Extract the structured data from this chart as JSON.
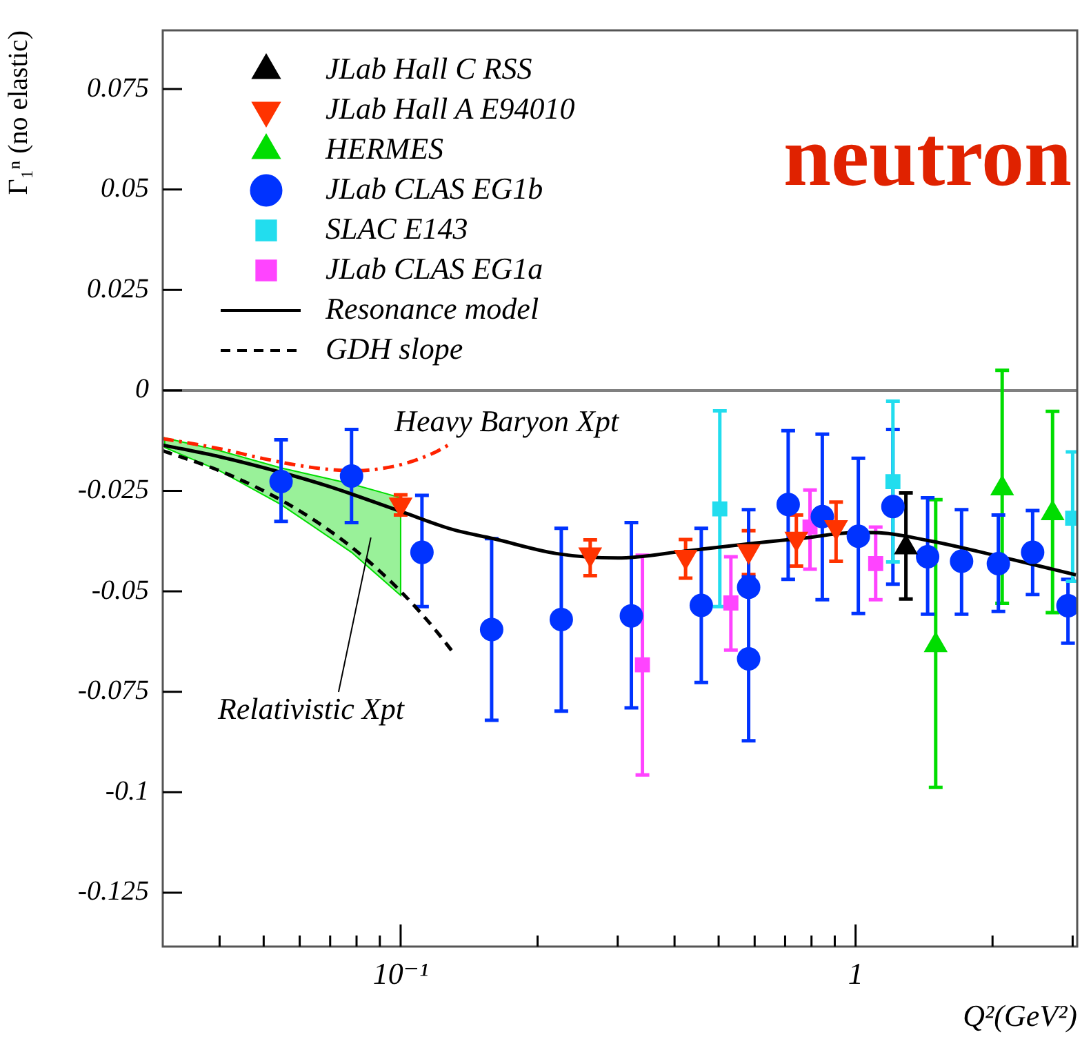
{
  "chart_data": {
    "type": "scatter",
    "ylabel": "Γ₁ⁿ (no elastic)",
    "xlabel": "Q²(GeV²)",
    "log": "x",
    "xlim": [
      0.03,
      3.07
    ],
    "ylim": [
      -0.1384,
      0.0896
    ],
    "xticks": [
      {
        "value": 0.04,
        "label": null
      },
      {
        "value": 0.05,
        "label": null
      },
      {
        "value": 0.06,
        "label": null
      },
      {
        "value": 0.07,
        "label": null
      },
      {
        "value": 0.08,
        "label": null
      },
      {
        "value": 0.09,
        "label": null
      },
      {
        "value": 0.1,
        "label": "10⁻¹"
      },
      {
        "value": 0.2,
        "label": null
      },
      {
        "value": 0.3,
        "label": null
      },
      {
        "value": 0.4,
        "label": null
      },
      {
        "value": 0.5,
        "label": null
      },
      {
        "value": 0.6,
        "label": null
      },
      {
        "value": 0.7,
        "label": null
      },
      {
        "value": 0.8,
        "label": null
      },
      {
        "value": 0.9,
        "label": null
      },
      1,
      {
        "value": 2,
        "label": null
      },
      {
        "value": 3,
        "label": null
      }
    ],
    "yticks": [
      -0.125,
      -0.1,
      -0.075,
      -0.05,
      -0.025,
      0,
      0.025,
      0.05,
      0.075
    ],
    "grid": false,
    "legend": "top left",
    "ref_lines": [
      {
        "axis": "y",
        "value": 0,
        "color": "#808080"
      }
    ],
    "annotations": [
      "neutron",
      "Heavy Baryon Xpt",
      "Relativistic Xpt"
    ],
    "series": [
      {
        "name": "JLab Hall C RSS",
        "marker": "triangle",
        "color": "#000000",
        "x": [
          1.29
        ],
        "values": [
          -0.0391
        ],
        "errors": [
          [
            -0.0519,
            -0.0255
          ]
        ]
      },
      {
        "name": "JLab Hall A E94010",
        "marker": "triangle-down",
        "color": "#ff3300",
        "x": [
          0.1,
          0.261,
          0.423,
          0.582,
          0.741,
          0.906
        ],
        "values": [
          -0.0284,
          -0.0408,
          -0.0414,
          -0.04,
          -0.0369,
          -0.034
        ],
        "errors": [
          [
            -0.031,
            -0.026
          ],
          [
            -0.0461,
            -0.0372
          ],
          [
            -0.0467,
            -0.0371
          ],
          [
            -0.0458,
            -0.0349
          ],
          [
            -0.0437,
            -0.031
          ],
          [
            -0.0425,
            -0.0278
          ]
        ]
      },
      {
        "name": "HERMES",
        "marker": "triangle",
        "color": "#00dd00",
        "x": [
          1.5,
          2.1,
          2.71
        ],
        "values": [
          -0.0634,
          -0.0244,
          -0.0306
        ],
        "errors": [
          [
            -0.0988,
            -0.0272
          ],
          [
            -0.053,
            0.005
          ],
          [
            -0.0553,
            -0.0052
          ]
        ]
      },
      {
        "name": "JLab CLAS EG1b",
        "marker": "circle",
        "color": "#0033ff",
        "x": [
          0.0546,
          0.078,
          0.1114,
          0.1585,
          0.2255,
          0.3215,
          0.458,
          0.582,
          0.582,
          0.711,
          0.845,
          1.014,
          1.208,
          1.44,
          1.71,
          2.06,
          2.45,
          2.93
        ],
        "values": [
          -0.0227,
          -0.0213,
          -0.0403,
          -0.0595,
          -0.057,
          -0.0561,
          -0.0535,
          -0.049,
          -0.0668,
          -0.0284,
          -0.0314,
          -0.0363,
          -0.0289,
          -0.0414,
          -0.0425,
          -0.0431,
          -0.0403,
          -0.0536
        ],
        "errors": [
          [
            -0.0326,
            -0.0123
          ],
          [
            -0.0329,
            -0.0097
          ],
          [
            -0.0538,
            -0.0261
          ],
          [
            -0.0821,
            -0.0369
          ],
          [
            -0.0798,
            -0.0343
          ],
          [
            -0.079,
            -0.0329
          ],
          [
            -0.0727,
            -0.0343
          ],
          [
            -0.049,
            -0.0297
          ],
          [
            -0.0872,
            -0.0464
          ],
          [
            -0.047,
            -0.01
          ],
          [
            -0.0521,
            -0.0109
          ],
          [
            -0.0555,
            -0.0169
          ],
          [
            -0.0482,
            -0.0097
          ],
          [
            -0.0557,
            -0.0267
          ],
          [
            -0.0557,
            -0.0297
          ],
          [
            -0.055,
            -0.031
          ],
          [
            -0.0508,
            -0.0299
          ],
          [
            -0.0629,
            -0.047
          ]
        ]
      },
      {
        "name": "SLAC E143",
        "marker": "square",
        "color": "#22ddee",
        "x": [
          0.503,
          1.208,
          3.0
        ],
        "values": [
          -0.0295,
          -0.0227,
          -0.0318
        ],
        "errors": [
          [
            -0.0538,
            -0.0051
          ],
          [
            -0.0427,
            -0.0027
          ],
          [
            -0.0475,
            -0.0153
          ]
        ]
      },
      {
        "name": "JLab CLAS EG1a",
        "marker": "square",
        "color": "#ff44ff",
        "x": [
          0.34,
          0.532,
          0.794,
          1.107
        ],
        "values": [
          -0.0683,
          -0.0529,
          -0.034,
          -0.0431
        ],
        "errors": [
          [
            -0.0957,
            -0.041
          ],
          [
            -0.0646,
            -0.0414
          ],
          [
            -0.0445,
            -0.0248
          ],
          [
            -0.0521,
            -0.034
          ]
        ]
      },
      {
        "name": "Resonance model",
        "type": "line",
        "line_style": "solid",
        "color": "#000000",
        "x": [
          0.03,
          0.04,
          0.055,
          0.07,
          0.1,
          0.13,
          0.16,
          0.22,
          0.3,
          0.42,
          0.6,
          0.75,
          1.0,
          1.1,
          1.45,
          2.05,
          3.05
        ],
        "values": [
          -0.0136,
          -0.0165,
          -0.0205,
          -0.024,
          -0.0301,
          -0.0346,
          -0.0369,
          -0.0406,
          -0.0417,
          -0.04,
          -0.038,
          -0.0369,
          -0.0354,
          -0.0354,
          -0.0374,
          -0.0412,
          -0.0459
        ]
      },
      {
        "name": "GDH slope",
        "type": "line",
        "line_style": "dashed",
        "color": "#000000",
        "x": [
          0.03,
          0.04,
          0.05,
          0.06,
          0.07,
          0.08,
          0.09,
          0.1,
          0.11,
          0.12,
          0.13
        ],
        "values": [
          -0.015,
          -0.02,
          -0.025,
          -0.03,
          -0.035,
          -0.04,
          -0.045,
          -0.05,
          -0.055,
          -0.06,
          -0.065
        ]
      },
      {
        "type": "line",
        "line_style": "dashdot",
        "color": "#ff2200",
        "x": [
          0.03,
          0.04,
          0.05,
          0.06,
          0.07,
          0.08,
          0.09,
          0.1,
          0.11,
          0.12,
          0.13
        ],
        "values": [
          -0.012,
          -0.0145,
          -0.017,
          -0.0187,
          -0.0197,
          -0.02,
          -0.0195,
          -0.0185,
          -0.017,
          -0.0152,
          -0.013
        ]
      },
      {
        "type": "area",
        "color": "#00dd00",
        "x": [
          0.0303,
          0.04,
          0.0546,
          0.078,
          0.1
        ],
        "values": [
          null,
          null,
          null,
          null,
          null
        ],
        "lower": [
          -0.0142,
          -0.02,
          -0.0284,
          -0.0403,
          -0.051
        ],
        "upper": [
          -0.0118,
          -0.015,
          -0.0193,
          -0.0233,
          -0.0267
        ]
      }
    ]
  }
}
